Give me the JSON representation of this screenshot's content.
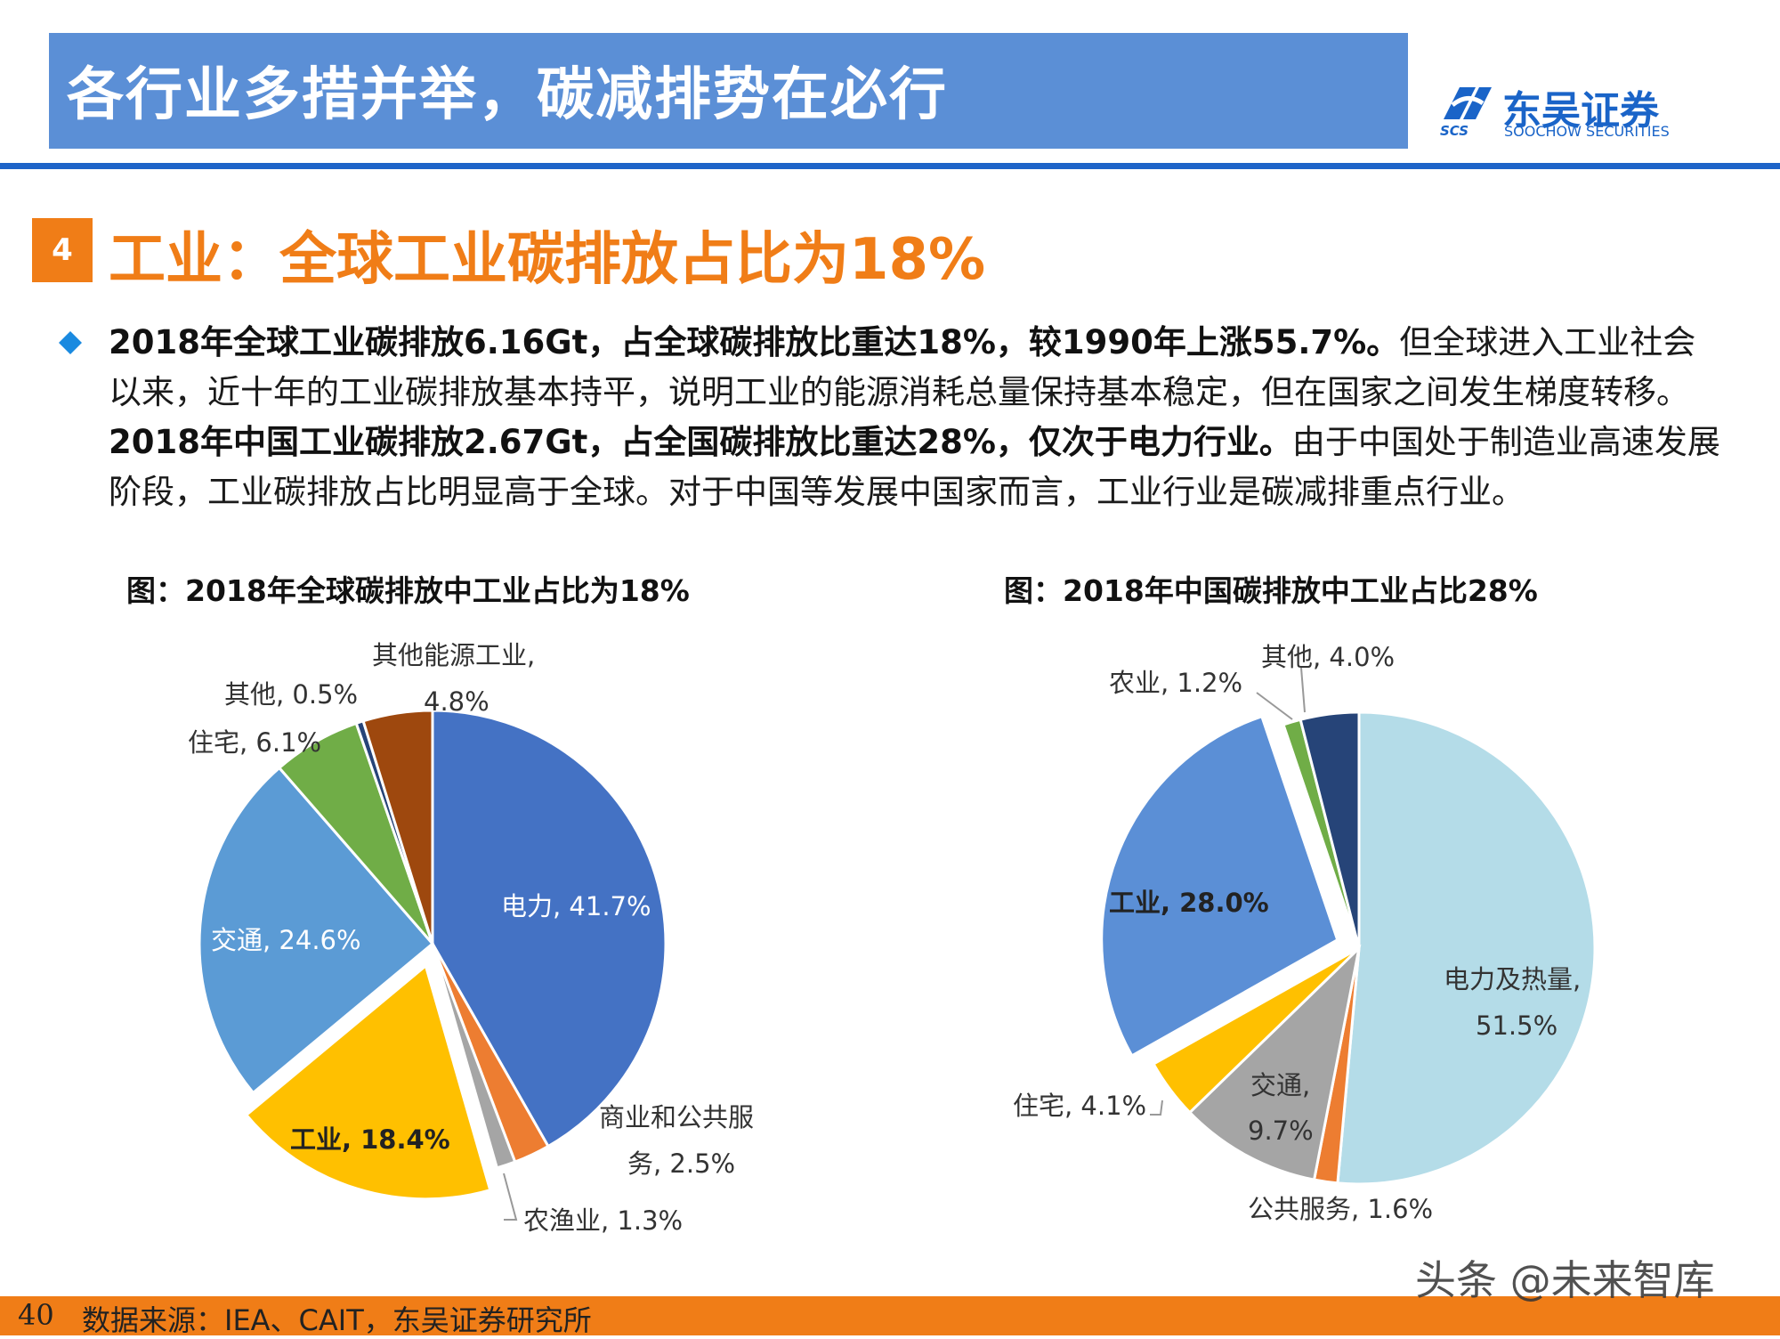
{
  "header": {
    "title": "各行业多措并举，碳减排势在必行",
    "logo_cn": "东吴证券",
    "logo_en": "SOOCHOW SECURITIES",
    "logo_abbr": "SCS"
  },
  "section": {
    "number": "4",
    "title": "工业：全球工业碳排放占比为18%"
  },
  "body": {
    "b1": "2018年全球工业碳排放6.16Gt，占全球碳排放比重达18%，较1990年上涨55.7%。",
    "t1": "但全球进入工业社会以来，近十年的工业碳排放基本持平，说明工业的能源消耗总量保持基本稳定，但在国家之间发生梯度转移。",
    "b2": "2018年中国工业碳排放2.67Gt，占全国碳排放比重达28%，仅次于电力行业。",
    "t2": "由于中国处于制造业高速发展阶段，工业碳排放占比明显高于全球。对于中国等发展中国家而言，工业行业是碳减排重点行业。"
  },
  "chart_data": [
    {
      "type": "pie",
      "title": "图：2018年全球碳排放中工业占比为18%",
      "slices": [
        {
          "name": "电力",
          "value": 41.7,
          "label": "电力, 41.7%",
          "color": "#4472c4",
          "exploded": false
        },
        {
          "name": "商业和公共服务",
          "value": 2.5,
          "label1": "商业和公共服",
          "label2": "务, 2.5%",
          "color": "#ed7d31",
          "exploded": false
        },
        {
          "name": "农渔业",
          "value": 1.3,
          "label": "农渔业, 1.3%",
          "color": "#a5a5a5",
          "exploded": false
        },
        {
          "name": "工业",
          "value": 18.4,
          "label": "工业, 18.4%",
          "color": "#ffc000",
          "exploded": true
        },
        {
          "name": "交通",
          "value": 24.6,
          "label": "交通, 24.6%",
          "color": "#5b9bd5",
          "exploded": false
        },
        {
          "name": "住宅",
          "value": 6.1,
          "label": "住宅, 6.1%",
          "color": "#70ad47",
          "exploded": false
        },
        {
          "name": "其他",
          "value": 0.5,
          "label": "其他, 0.5%",
          "color": "#264478",
          "exploded": false
        },
        {
          "name": "其他能源工业",
          "value": 4.8,
          "label1": "其他能源工业,",
          "label2": "4.8%",
          "color": "#9e480e",
          "exploded": false
        }
      ]
    },
    {
      "type": "pie",
      "title": "图：2018年中国碳排放中工业占比28%",
      "slices": [
        {
          "name": "电力及热量",
          "value": 51.5,
          "label1": "电力及热量,",
          "label2": "51.5%",
          "color": "#b4dce8",
          "exploded": false
        },
        {
          "name": "公共服务",
          "value": 1.6,
          "label": "公共服务, 1.6%",
          "color": "#ed7d31",
          "exploded": false
        },
        {
          "name": "交通",
          "value": 9.7,
          "label1": "交通,",
          "label2": "9.7%",
          "color": "#a5a5a5",
          "exploded": false
        },
        {
          "name": "住宅",
          "value": 4.1,
          "label": "住宅, 4.1%",
          "color": "#ffc000",
          "exploded": false
        },
        {
          "name": "工业",
          "value": 28.0,
          "label": "工业, 28.0%",
          "color": "#5b8fd6",
          "exploded": true
        },
        {
          "name": "农业",
          "value": 1.2,
          "label": "农业, 1.2%",
          "color": "#70ad47",
          "exploded": false
        },
        {
          "name": "其他",
          "value": 4.0,
          "label": "其他, 4.0%",
          "color": "#264478",
          "exploded": false
        }
      ]
    }
  ],
  "footer": {
    "page": "40",
    "source": "数据来源：IEA、CAIT，东吴证券研究所",
    "watermark": "头条 @未来智库"
  }
}
